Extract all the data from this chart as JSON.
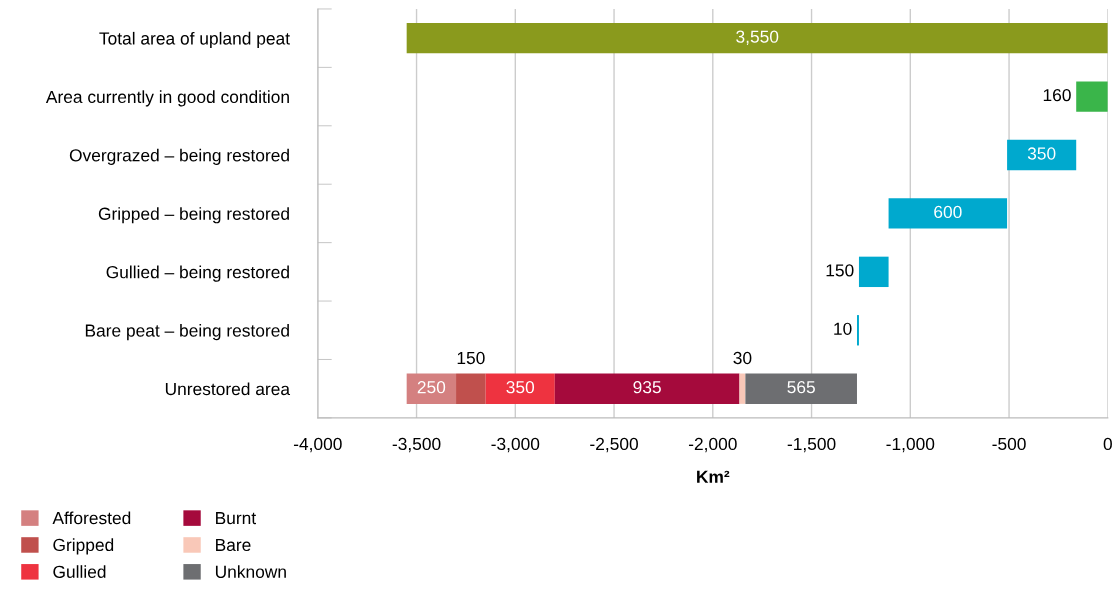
{
  "chart_data": {
    "type": "bar",
    "orientation": "horizontal",
    "categories": [
      "Total area of upland peat",
      "Area currently in good condition",
      "Overgrazed – being restored",
      "Gripped – being restored",
      "Gullied – being restored",
      "Bare peat – being restored",
      "Unrestored area"
    ],
    "series": [
      {
        "colors": [
          "#8a9a1d",
          "#3ab54a",
          "#00a9ce",
          "#00a9ce",
          "#00a9ce",
          "#00a9ce",
          null
        ],
        "values": [
          3550,
          160,
          350,
          600,
          150,
          10,
          null
        ],
        "base": [
          -3550,
          -160,
          -510,
          -1110,
          -1260,
          -1270,
          null
        ],
        "value_labels": [
          "3,550",
          "160",
          "350",
          "600",
          "150",
          "10",
          null
        ]
      },
      {
        "name": "Afforested",
        "color": "#d48080",
        "values": [
          null,
          null,
          null,
          null,
          null,
          null,
          250
        ],
        "base": [
          null,
          null,
          null,
          null,
          null,
          null,
          -3550
        ],
        "value_labels": [
          null,
          null,
          null,
          null,
          null,
          null,
          "250"
        ]
      },
      {
        "name": "Gripped",
        "color": "#c0504d",
        "values": [
          null,
          null,
          null,
          null,
          null,
          null,
          150
        ],
        "base": [
          null,
          null,
          null,
          null,
          null,
          null,
          -3300
        ],
        "value_labels": [
          null,
          null,
          null,
          null,
          null,
          null,
          "150"
        ]
      },
      {
        "name": "Gullied",
        "color": "#ee3340",
        "values": [
          null,
          null,
          null,
          null,
          null,
          null,
          350
        ],
        "base": [
          null,
          null,
          null,
          null,
          null,
          null,
          -3150
        ],
        "value_labels": [
          null,
          null,
          null,
          null,
          null,
          null,
          "350"
        ]
      },
      {
        "name": "Burnt",
        "color": "#a50a3c",
        "values": [
          null,
          null,
          null,
          null,
          null,
          null,
          935
        ],
        "base": [
          null,
          null,
          null,
          null,
          null,
          null,
          -2800
        ],
        "value_labels": [
          null,
          null,
          null,
          null,
          null,
          null,
          "935"
        ]
      },
      {
        "name": "Bare",
        "color": "#f9c8b8",
        "values": [
          null,
          null,
          null,
          null,
          null,
          null,
          30
        ],
        "base": [
          null,
          null,
          null,
          null,
          null,
          null,
          -1865
        ],
        "value_labels": [
          null,
          null,
          null,
          null,
          null,
          null,
          "30"
        ]
      },
      {
        "name": "Unknown",
        "color": "#6d6e71",
        "values": [
          null,
          null,
          null,
          null,
          null,
          null,
          565
        ],
        "base": [
          null,
          null,
          null,
          null,
          null,
          null,
          -1835
        ],
        "value_labels": [
          null,
          null,
          null,
          null,
          null,
          null,
          "565"
        ]
      }
    ],
    "xlabel": "Km²",
    "xlim": [
      -4000,
      0
    ],
    "xticks": [
      {
        "value": -4000,
        "label": "-4,000"
      },
      {
        "value": -3500,
        "label": "-3,500"
      },
      {
        "value": -3000,
        "label": "-3,000"
      },
      {
        "value": -2500,
        "label": "-2,500"
      },
      {
        "value": -2000,
        "label": "-2,000"
      },
      {
        "value": -1500,
        "label": "-1,500"
      },
      {
        "value": -1000,
        "label": "-1,000"
      },
      {
        "value": -500,
        "label": "-500"
      },
      0
    ],
    "grid": "x",
    "legend": "bottom left"
  }
}
